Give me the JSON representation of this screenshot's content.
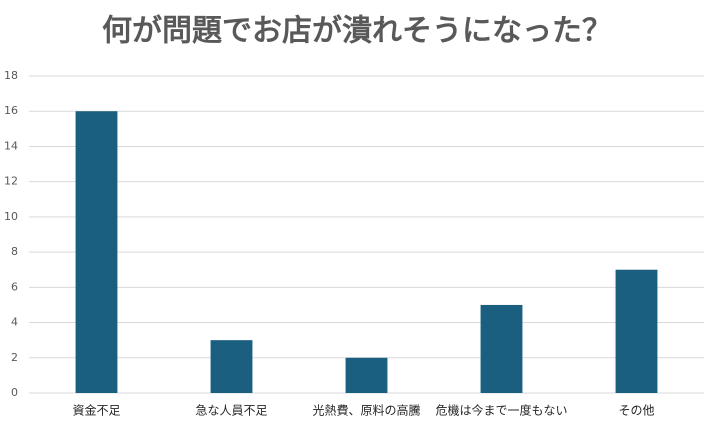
{
  "chart_data": {
    "type": "bar",
    "title": "何が問題でお店が潰れそうになった？",
    "categories": [
      "資金不足",
      "急な人員不足",
      "光熱費、原料の高騰",
      "危機は今まで一度もない",
      "その他"
    ],
    "values": [
      16,
      3,
      2,
      5,
      7
    ],
    "color": "#1a5e80",
    "ylim": [
      0,
      18
    ],
    "yticks": [
      0,
      2,
      4,
      6,
      8,
      10,
      12,
      14,
      16,
      18
    ],
    "grid": true
  }
}
